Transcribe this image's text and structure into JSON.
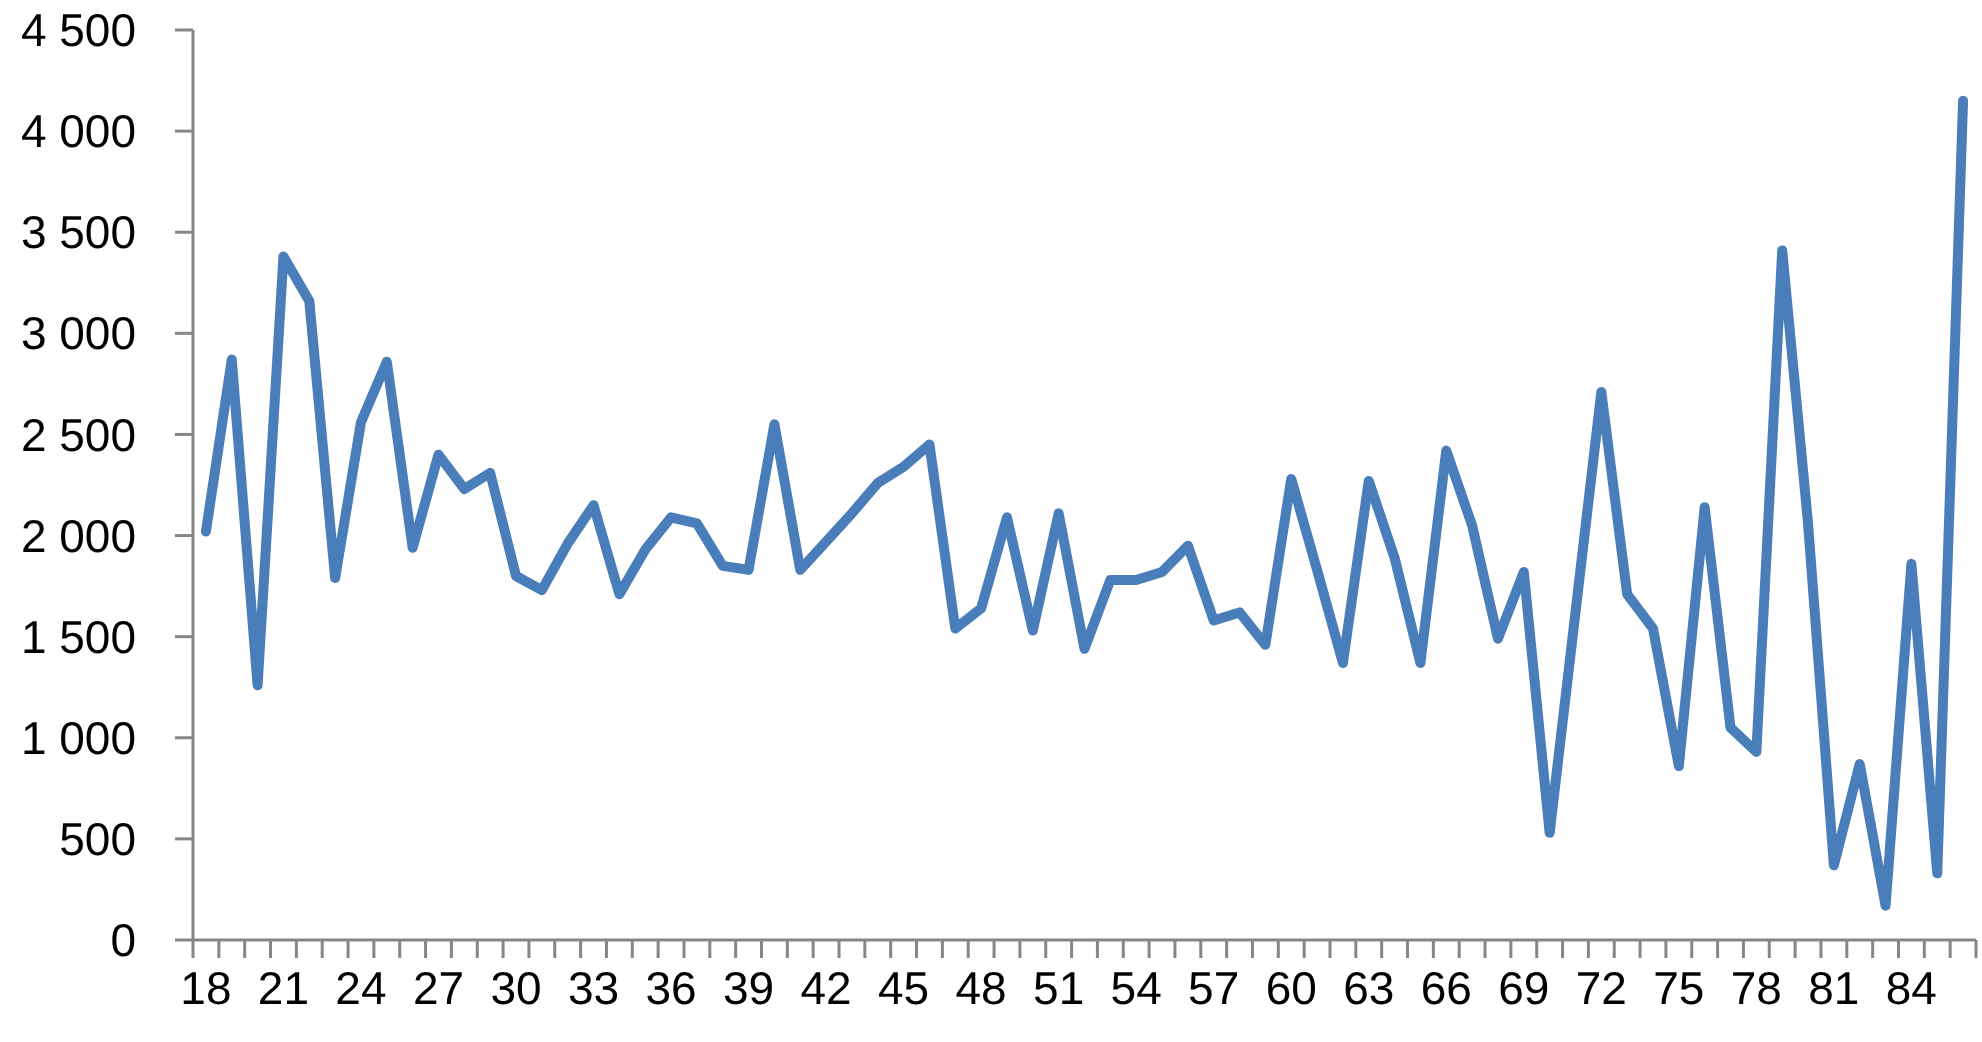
{
  "chart_data": {
    "type": "line",
    "categories": [
      "18",
      null,
      null,
      "21",
      null,
      null,
      "24",
      null,
      null,
      "27",
      null,
      null,
      "30",
      null,
      null,
      "33",
      null,
      null,
      "36",
      null,
      null,
      "39",
      null,
      null,
      "42",
      null,
      null,
      "45",
      null,
      null,
      "48",
      null,
      null,
      "51",
      null,
      null,
      "54",
      null,
      null,
      "57",
      null,
      null,
      "60",
      null,
      null,
      "63",
      null,
      null,
      "66",
      null,
      null,
      "69",
      null,
      null,
      "72",
      null,
      null,
      "75",
      null,
      null,
      "78",
      null,
      null,
      "81",
      null,
      null,
      "84",
      null,
      null
    ],
    "values": [
      2020,
      2870,
      1260,
      3380,
      3160,
      1790,
      2560,
      2860,
      1940,
      2400,
      2230,
      2310,
      1800,
      1730,
      1960,
      2150,
      1710,
      1930,
      2090,
      2060,
      1850,
      1830,
      2550,
      1830,
      1970,
      2110,
      2260,
      2340,
      2450,
      1540,
      1640,
      2090,
      1530,
      2110,
      1440,
      1780,
      1780,
      1820,
      1950,
      1580,
      1620,
      1460,
      2280,
      1830,
      1370,
      2270,
      1890,
      1370,
      2420,
      2050,
      1490,
      1820,
      530,
      1620,
      2710,
      1710,
      1540,
      860,
      2140,
      1050,
      930,
      3410,
      2060,
      370,
      870,
      170,
      1860,
      330,
      4150
    ],
    "color": "#4a7ebb",
    "ylim": [
      0,
      4500
    ],
    "yticks": [
      0,
      500,
      {
        "value": 1000,
        "label": "1 000"
      },
      {
        "value": 1500,
        "label": "1 500"
      },
      {
        "value": 2000,
        "label": "2 000"
      },
      {
        "value": 2500,
        "label": "2 500"
      },
      {
        "value": 3000,
        "label": "3 000"
      },
      {
        "value": 3500,
        "label": "3 500"
      },
      {
        "value": 4000,
        "label": "4 000"
      },
      {
        "value": 4500,
        "label": "4 500"
      }
    ]
  }
}
